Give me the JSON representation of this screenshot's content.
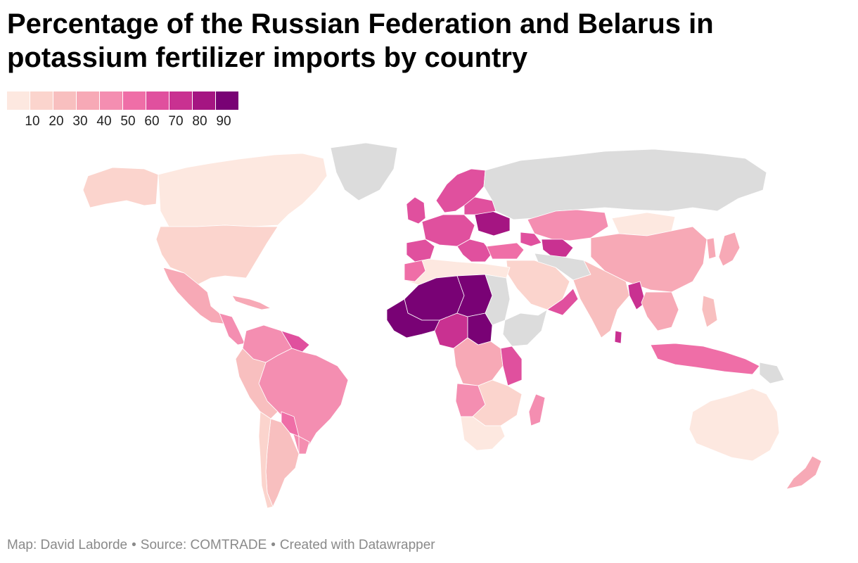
{
  "title": "Percentage of the Russian Federation and Belarus in potassium fertilizer imports by country",
  "legend": {
    "colors": [
      "#fde8e0",
      "#fbd4cd",
      "#f8bfbf",
      "#f7a9b6",
      "#f48eb1",
      "#ef6ea7",
      "#e0509e",
      "#c93191",
      "#a51582",
      "#790275"
    ],
    "ticks": [
      "10",
      "20",
      "30",
      "40",
      "50",
      "60",
      "70",
      "80",
      "90"
    ]
  },
  "no_data_color": "#dcdcdc",
  "footer": {
    "map_credit": "Map: David Laborde",
    "source": "Source: COMTRADE",
    "created_with": "Created with Datawrapper",
    "separator": "•"
  }
}
